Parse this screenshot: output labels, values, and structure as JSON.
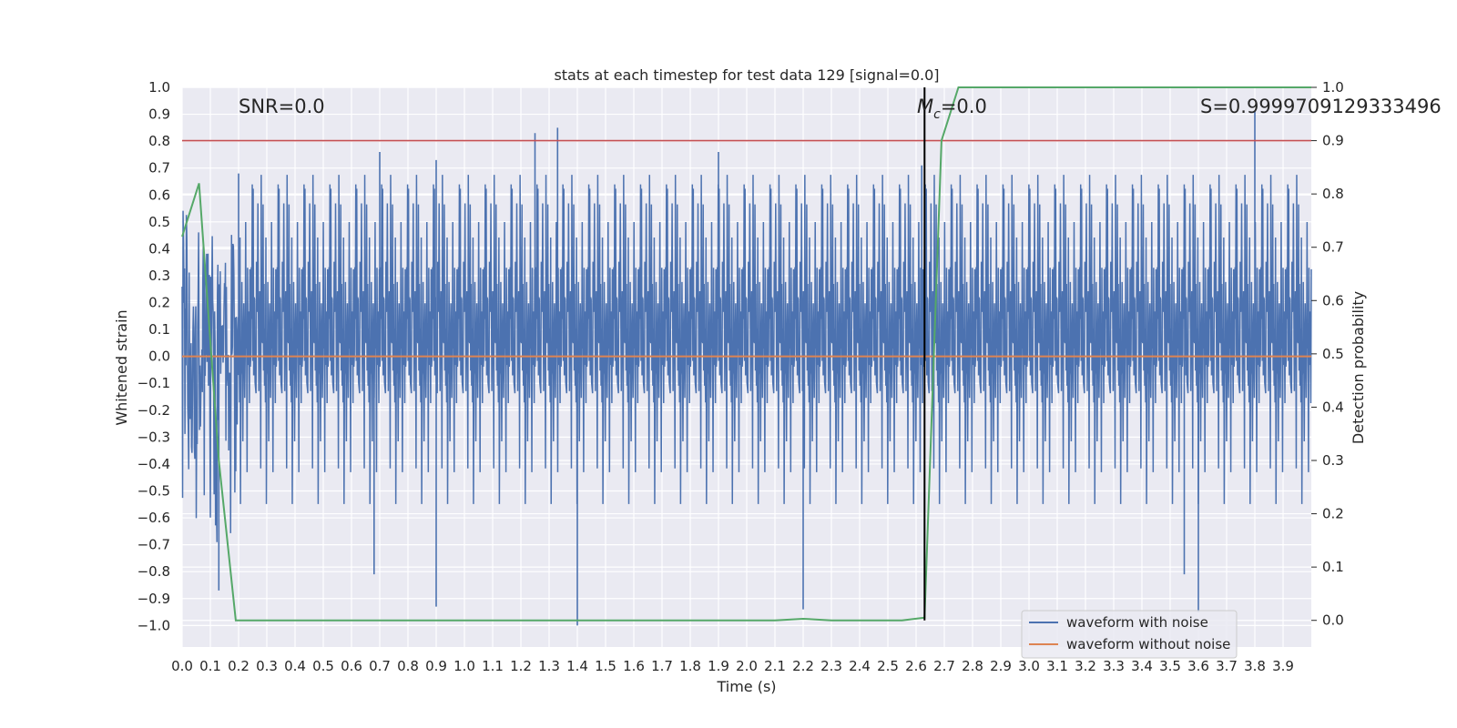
{
  "chart_data": {
    "type": "line",
    "title": "stats at each timestep for test data 129 [signal=0.0]",
    "xlabel": "Time (s)",
    "ylabel": "Whitened strain",
    "y2label": "Detection probability",
    "xlim": [
      0.0,
      4.0
    ],
    "ylim": [
      -1.08,
      1.0
    ],
    "y2lim": [
      -0.05,
      1.0
    ],
    "x_ticks": [
      0.0,
      0.1,
      0.2,
      0.3,
      0.4,
      0.5,
      0.6,
      0.7,
      0.8,
      0.9,
      1.0,
      1.1,
      1.2,
      1.3,
      1.4,
      1.5,
      1.6,
      1.7,
      1.8,
      1.9,
      2.0,
      2.1,
      2.2,
      2.3,
      2.4,
      2.5,
      2.6,
      2.7,
      2.8,
      2.9,
      3.0,
      3.1,
      3.2,
      3.3,
      3.4,
      3.5,
      3.6,
      3.7,
      3.8,
      3.9
    ],
    "x_tick_labels": [
      "0.0",
      "0.1",
      "0.2",
      "0.3",
      "0.4",
      "0.5",
      "0.6",
      "0.7",
      "0.8",
      "0.9",
      "1.0",
      "1.1",
      "1.2",
      "1.3",
      "1.4",
      "1.5",
      "1.6",
      "1.7",
      "1.8",
      "1.9",
      "2.0",
      "2.1",
      "2.2",
      "2.3",
      "2.4",
      "2.5",
      "2.6",
      "2.7",
      "2.8",
      "2.9",
      "3.0",
      "3.1",
      "3.2",
      "3.3",
      "3.4",
      "3.5",
      "3.6",
      "3.7",
      "3.8",
      "3.9"
    ],
    "y_ticks": [
      1.0,
      0.9,
      0.8,
      0.7,
      0.6,
      0.5,
      0.4,
      0.3,
      0.2,
      0.1,
      0.0,
      -0.1,
      -0.2,
      -0.3,
      -0.4,
      -0.5,
      -0.6,
      -0.7,
      -0.8,
      -0.9,
      -1.0
    ],
    "y_tick_labels": [
      "1.0",
      "0.9",
      "0.8",
      "0.7",
      "0.6",
      "0.5",
      "0.4",
      "0.3",
      "0.2",
      "0.1",
      "0.0",
      "−0.1",
      "−0.2",
      "−0.3",
      "−0.4",
      "−0.5",
      "−0.6",
      "−0.7",
      "−0.8",
      "−0.9",
      "−1.0"
    ],
    "y2_ticks": [
      1.0,
      0.9,
      0.8,
      0.7,
      0.6,
      0.5,
      0.4,
      0.3,
      0.2,
      0.1,
      0.0
    ],
    "y2_tick_labels": [
      "1.0",
      "0.9",
      "0.8",
      "0.7",
      "0.6",
      "0.5",
      "0.4",
      "0.3",
      "0.2",
      "0.1",
      "0.0"
    ],
    "grid": true,
    "legend_position": "lower-right",
    "annotations": {
      "snr": "SNR=0.0",
      "mc_symbol": "M",
      "mc_subscript": "c",
      "mc_value": "=0.0",
      "s": "S=0.9999709129333496"
    },
    "series": [
      {
        "name": "waveform with noise",
        "color": "#4c72b0",
        "note_visual": "dense noise trace",
        "amplitude_envelope": {
          "typical": 0.3,
          "max": 0.91,
          "min": -1.0
        },
        "peaks": [
          {
            "x": 0.2,
            "y": 0.68
          },
          {
            "x": 0.7,
            "y": 0.76
          },
          {
            "x": 0.9,
            "y": 0.73
          },
          {
            "x": 1.25,
            "y": 0.83
          },
          {
            "x": 1.33,
            "y": 0.85
          },
          {
            "x": 1.9,
            "y": 0.76
          },
          {
            "x": 2.62,
            "y": 0.71
          },
          {
            "x": 3.8,
            "y": 0.91
          },
          {
            "x": 1.4,
            "y": -1.0
          },
          {
            "x": 0.9,
            "y": -0.93
          },
          {
            "x": 2.2,
            "y": -0.94
          },
          {
            "x": 3.6,
            "y": -0.95
          },
          {
            "x": 3.55,
            "y": -0.81
          },
          {
            "x": 0.68,
            "y": -0.81
          },
          {
            "x": 0.13,
            "y": -0.87
          }
        ]
      },
      {
        "name": "waveform without noise",
        "color": "#dd8452",
        "x": [
          0.0,
          4.0
        ],
        "y": [
          0.0,
          0.0
        ]
      },
      {
        "name": "",
        "color": "#55a868",
        "axis": "right",
        "x": [
          0.0,
          0.06,
          0.13,
          0.19,
          0.25,
          0.5,
          1.0,
          1.5,
          2.0,
          2.1,
          2.2,
          2.3,
          2.4,
          2.55,
          2.63,
          2.69,
          2.75,
          3.0,
          3.5,
          4.0
        ],
        "y": [
          0.72,
          0.82,
          0.3,
          0.0,
          0.0,
          0.0,
          0.0,
          0.0,
          0.0,
          0.0,
          0.003,
          0.0,
          0.0,
          0.0,
          0.005,
          0.9,
          1.0,
          1.0,
          1.0,
          1.0
        ]
      }
    ],
    "threshold_line": {
      "color": "#c44e52",
      "axis": "right",
      "y": 0.9
    },
    "marker_line": {
      "color": "#000000",
      "x": 2.63,
      "y_from": 0.0,
      "y_to": 1.0,
      "axis": "right"
    }
  }
}
